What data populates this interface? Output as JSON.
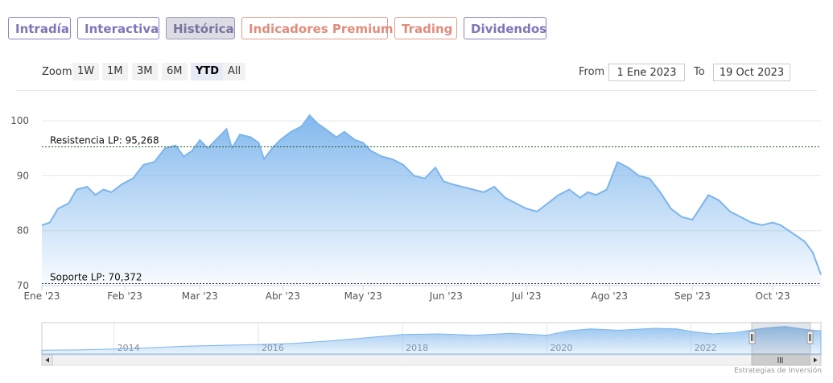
{
  "tabs": [
    {
      "label": "Intradía",
      "style": "purple"
    },
    {
      "label": "Interactiva",
      "style": "purple"
    },
    {
      "label": "Histórica",
      "style": "active"
    },
    {
      "label": "Indicadores Premium",
      "style": "salmon"
    },
    {
      "label": "Trading",
      "style": "salmon"
    },
    {
      "label": "Dividendos",
      "style": "purple"
    }
  ],
  "zoom": {
    "label": "Zoom",
    "buttons": [
      "1W",
      "1M",
      "3M",
      "6M",
      "YTD",
      "All"
    ],
    "selected": "YTD"
  },
  "range": {
    "from_label": "From",
    "from_value": "1 Ene 2023",
    "to_label": "To",
    "to_value": "19 Oct 2023"
  },
  "credit": "Estrategias de Inversión",
  "colors": {
    "area_line": "#7cb5ec",
    "resistance": "#1a5e1a",
    "support": "#222222"
  },
  "chart_data": {
    "type": "area",
    "x_axis": {
      "type": "date",
      "min": "2023-01-01",
      "max": "2023-10-19",
      "ticks": [
        {
          "label": "Ene '23",
          "date": "2023-01-01"
        },
        {
          "label": "Feb '23",
          "date": "2023-02-01"
        },
        {
          "label": "Mar '23",
          "date": "2023-03-01"
        },
        {
          "label": "Abr '23",
          "date": "2023-04-01"
        },
        {
          "label": "May '23",
          "date": "2023-05-01"
        },
        {
          "label": "Jun '23",
          "date": "2023-06-01"
        },
        {
          "label": "Jul '23",
          "date": "2023-07-01"
        },
        {
          "label": "Ago '23",
          "date": "2023-08-01"
        },
        {
          "label": "Sep '23",
          "date": "2023-09-01"
        },
        {
          "label": "Oct '23",
          "date": "2023-10-01"
        }
      ]
    },
    "y_axis": {
      "min": 70,
      "max": 105,
      "ticks": [
        70,
        80,
        90,
        100
      ]
    },
    "grid": true,
    "series": [
      {
        "values": [
          [
            "2023-01-01",
            81
          ],
          [
            "2023-01-04",
            81.5
          ],
          [
            "2023-01-07",
            84
          ],
          [
            "2023-01-11",
            85
          ],
          [
            "2023-01-14",
            87.5
          ],
          [
            "2023-01-18",
            88
          ],
          [
            "2023-01-21",
            86.5
          ],
          [
            "2023-01-24",
            87.5
          ],
          [
            "2023-01-27",
            87
          ],
          [
            "2023-01-31",
            88.5
          ],
          [
            "2023-02-04",
            89.5
          ],
          [
            "2023-02-08",
            92
          ],
          [
            "2023-02-12",
            92.5
          ],
          [
            "2023-02-16",
            95
          ],
          [
            "2023-02-20",
            95.5
          ],
          [
            "2023-02-23",
            93.5
          ],
          [
            "2023-02-26",
            94.5
          ],
          [
            "2023-03-01",
            96.5
          ],
          [
            "2023-03-04",
            95
          ],
          [
            "2023-03-08",
            97
          ],
          [
            "2023-03-11",
            98.5
          ],
          [
            "2023-03-13",
            95
          ],
          [
            "2023-03-16",
            97.5
          ],
          [
            "2023-03-20",
            97
          ],
          [
            "2023-03-23",
            96
          ],
          [
            "2023-03-25",
            93
          ],
          [
            "2023-03-28",
            95
          ],
          [
            "2023-03-31",
            96.5
          ],
          [
            "2023-04-04",
            98
          ],
          [
            "2023-04-08",
            99
          ],
          [
            "2023-04-11",
            101
          ],
          [
            "2023-04-14",
            99.5
          ],
          [
            "2023-04-17",
            98.5
          ],
          [
            "2023-04-21",
            97
          ],
          [
            "2023-04-24",
            98
          ],
          [
            "2023-04-28",
            96.5
          ],
          [
            "2023-05-01",
            96
          ],
          [
            "2023-05-04",
            94.5
          ],
          [
            "2023-05-08",
            93.5
          ],
          [
            "2023-05-12",
            93
          ],
          [
            "2023-05-16",
            92
          ],
          [
            "2023-05-20",
            90
          ],
          [
            "2023-05-24",
            89.5
          ],
          [
            "2023-05-28",
            91.5
          ],
          [
            "2023-05-31",
            89
          ],
          [
            "2023-06-03",
            88.5
          ],
          [
            "2023-06-07",
            88
          ],
          [
            "2023-06-11",
            87.5
          ],
          [
            "2023-06-15",
            87
          ],
          [
            "2023-06-19",
            88
          ],
          [
            "2023-06-23",
            86
          ],
          [
            "2023-06-27",
            85
          ],
          [
            "2023-07-01",
            84
          ],
          [
            "2023-07-05",
            83.5
          ],
          [
            "2023-07-09",
            85
          ],
          [
            "2023-07-13",
            86.5
          ],
          [
            "2023-07-17",
            87.5
          ],
          [
            "2023-07-21",
            86
          ],
          [
            "2023-07-24",
            87
          ],
          [
            "2023-07-27",
            86.5
          ],
          [
            "2023-07-31",
            87.5
          ],
          [
            "2023-08-04",
            92.5
          ],
          [
            "2023-08-08",
            91.5
          ],
          [
            "2023-08-12",
            90
          ],
          [
            "2023-08-16",
            89.5
          ],
          [
            "2023-08-20",
            87
          ],
          [
            "2023-08-24",
            84
          ],
          [
            "2023-08-28",
            82.5
          ],
          [
            "2023-09-01",
            82
          ],
          [
            "2023-09-03",
            83.5
          ],
          [
            "2023-09-07",
            86.5
          ],
          [
            "2023-09-11",
            85.5
          ],
          [
            "2023-09-15",
            83.5
          ],
          [
            "2023-09-19",
            82.5
          ],
          [
            "2023-09-23",
            81.5
          ],
          [
            "2023-09-27",
            81
          ],
          [
            "2023-10-01",
            81.5
          ],
          [
            "2023-10-04",
            81
          ],
          [
            "2023-10-07",
            80
          ],
          [
            "2023-10-10",
            79
          ],
          [
            "2023-10-13",
            78
          ],
          [
            "2023-10-16",
            76
          ],
          [
            "2023-10-19",
            72
          ]
        ]
      }
    ],
    "annotations": [
      {
        "label": "Resistencia LP: 95,268",
        "value": 95.268,
        "style": "dotted"
      },
      {
        "label": "Soporte LP: 70,372",
        "value": 70.372,
        "style": "dotted"
      }
    ],
    "navigator": {
      "ticks": [
        "2014",
        "2016",
        "2018",
        "2020",
        "2022"
      ],
      "series": [
        [
          2013.0,
          0.12
        ],
        [
          2013.5,
          0.13
        ],
        [
          2014.0,
          0.16
        ],
        [
          2014.5,
          0.2
        ],
        [
          2015.0,
          0.25
        ],
        [
          2015.5,
          0.28
        ],
        [
          2016.0,
          0.3
        ],
        [
          2016.5,
          0.34
        ],
        [
          2017.0,
          0.42
        ],
        [
          2017.5,
          0.52
        ],
        [
          2018.0,
          0.62
        ],
        [
          2018.5,
          0.64
        ],
        [
          2019.0,
          0.6
        ],
        [
          2019.5,
          0.66
        ],
        [
          2020.0,
          0.6
        ],
        [
          2020.3,
          0.74
        ],
        [
          2020.6,
          0.8
        ],
        [
          2021.0,
          0.76
        ],
        [
          2021.5,
          0.82
        ],
        [
          2021.8,
          0.8
        ],
        [
          2022.0,
          0.72
        ],
        [
          2022.3,
          0.64
        ],
        [
          2022.6,
          0.68
        ],
        [
          2023.0,
          0.82
        ],
        [
          2023.3,
          0.88
        ],
        [
          2023.6,
          0.78
        ],
        [
          2023.8,
          0.74
        ]
      ]
    }
  }
}
